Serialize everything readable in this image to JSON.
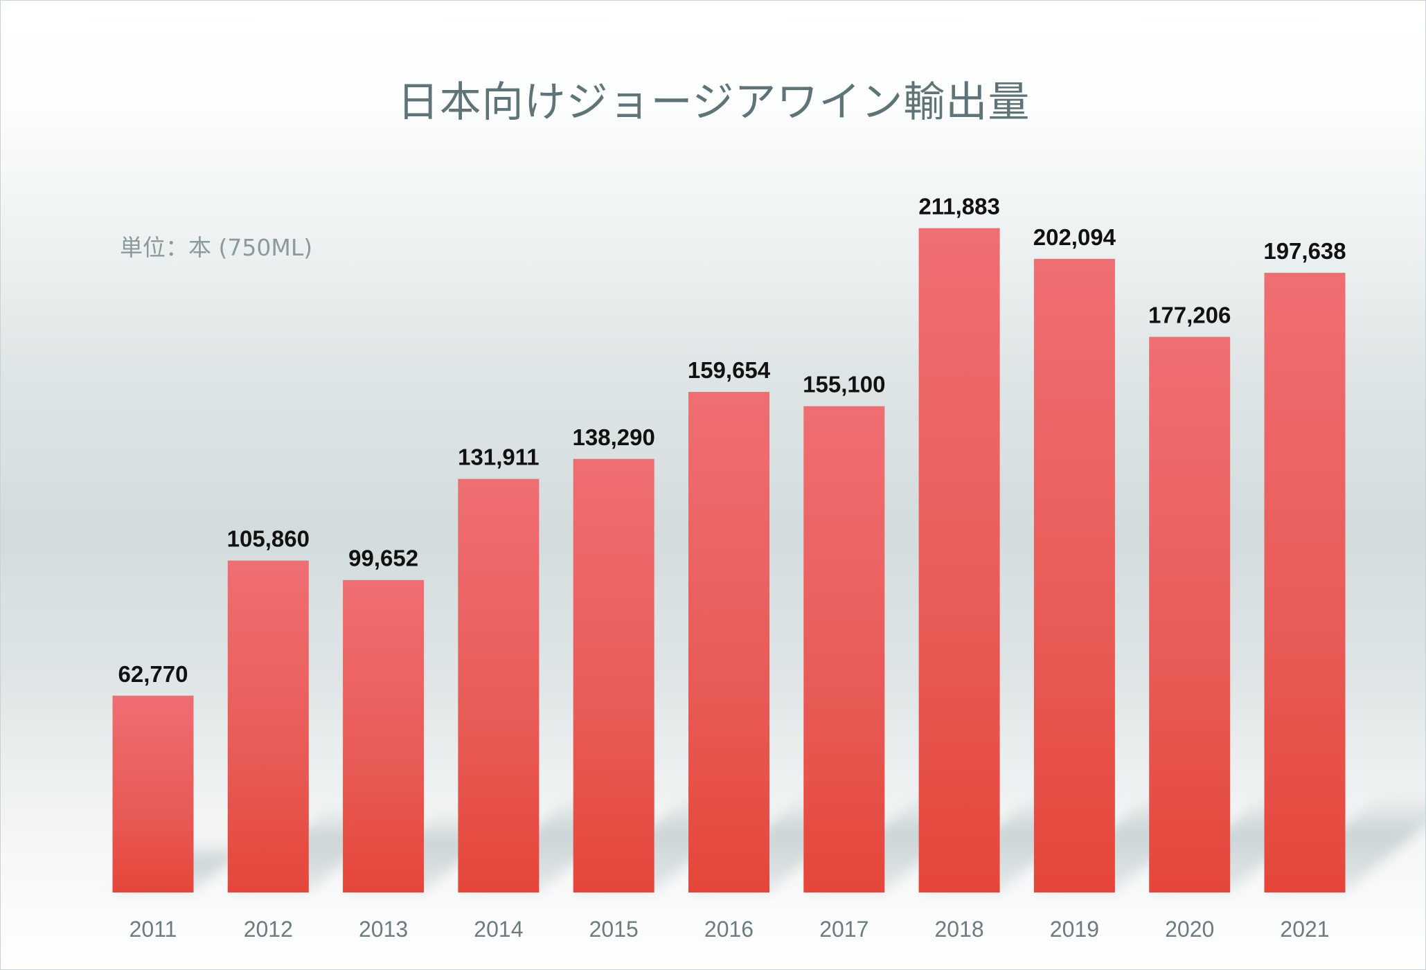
{
  "chart_data": {
    "type": "bar",
    "title": "日本向けジョージアワイン輸出量",
    "unit_note": "単位：本 (750ML)",
    "categories": [
      "2011",
      "2012",
      "2013",
      "2014",
      "2015",
      "2016",
      "2017",
      "2018",
      "2019",
      "2020",
      "2021"
    ],
    "values": [
      62770,
      105860,
      99652,
      131911,
      138290,
      159654,
      155100,
      211883,
      202094,
      177206,
      197638
    ],
    "value_labels": [
      "62,770",
      "105,860",
      "99,652",
      "131,911",
      "138,290",
      "159,654",
      "155,100",
      "211,883",
      "202,094",
      "177,206",
      "197,638"
    ],
    "ylim": [
      0,
      212000
    ],
    "grid": false,
    "legend": "none",
    "bar_color_top": "#ef6e72",
    "bar_color_bottom": "#e5463a"
  }
}
